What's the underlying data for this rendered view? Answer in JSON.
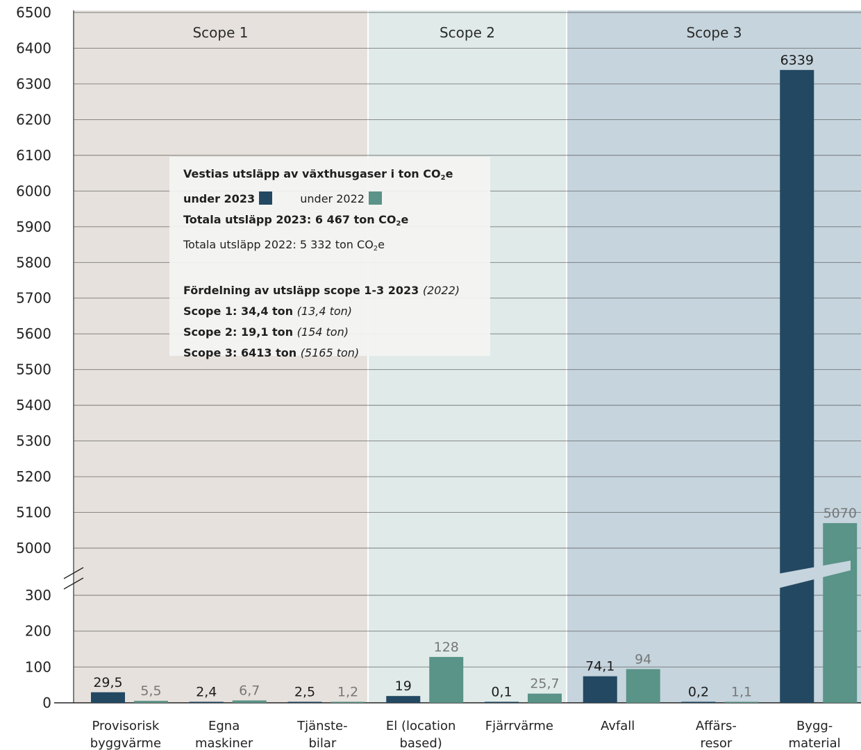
{
  "chart_data": {
    "type": "bar",
    "categories": [
      "Provisorisk byggvärme",
      "Egna maskiner",
      "Tjänste-bilar",
      "El (location based)",
      "Fjärrvärme",
      "Avfall",
      "Affärs-resor",
      "Bygg-material"
    ],
    "category_lines": [
      [
        "Provisorisk",
        "byggvärme"
      ],
      [
        "Egna",
        "maskiner"
      ],
      [
        "Tjänste-",
        "bilar"
      ],
      [
        "El (location",
        "based)"
      ],
      [
        "Fjärrvärme"
      ],
      [
        "Avfall"
      ],
      [
        "Affärs-",
        "resor"
      ],
      [
        "Bygg-",
        "material"
      ]
    ],
    "series": [
      {
        "name": "under 2023",
        "color": "#234862",
        "values": [
          29.5,
          2.4,
          2.5,
          19,
          0.1,
          74.1,
          0.2,
          6339
        ],
        "labels": [
          "29,5",
          "2,4",
          "2,5",
          "19",
          "0,1",
          "74,1",
          "0,2",
          "6339"
        ]
      },
      {
        "name": "under 2022",
        "color": "#5a9387",
        "values": [
          5.5,
          6.7,
          1.2,
          128,
          25.7,
          94,
          1.1,
          5070
        ],
        "labels": [
          "5,5",
          "6,7",
          "1,2",
          "128",
          "25,7",
          "94",
          "1,1",
          "5070"
        ]
      }
    ],
    "y_axis": {
      "broken": true,
      "lower_ticks": [
        0,
        100,
        200,
        300
      ],
      "upper_ticks": [
        5000,
        5100,
        5200,
        5300,
        5400,
        5500,
        5600,
        5700,
        5800,
        5900,
        6000,
        6100,
        6200,
        6300,
        6400,
        6500
      ]
    },
    "scopes": [
      {
        "label": "Scope 1",
        "color": "#e6e1dc",
        "categories": [
          0,
          1,
          2
        ]
      },
      {
        "label": "Scope 2",
        "color": "#e0ebe9",
        "categories": [
          3,
          4
        ]
      },
      {
        "label": "Scope 3",
        "color": "#c5d4dd",
        "categories": [
          5,
          6,
          7
        ]
      }
    ],
    "grid": true
  },
  "info_box": {
    "title": "Vestias utsläpp av växthusgaser i ton CO",
    "title_sub": "2",
    "title_tail": "e",
    "legend_2023": "under 2023",
    "legend_2022": "under 2022",
    "total_2023": "Totala utsläpp 2023: 6 467  ton CO",
    "total_2023_sub": "2",
    "total_2023_tail": "e",
    "total_2022": "Totala utsläpp 2022: 5 332  ton CO",
    "total_2022_sub": "2",
    "total_2022_tail": "e",
    "dist_title": "Fördelning av utsläpp scope 1-3 2023",
    "dist_title_paren": "(2022)",
    "scope1": "Scope 1: 34,4 ton",
    "scope1_paren": "(13,4 ton)",
    "scope2": "Scope 2: 19,1 ton",
    "scope2_paren": "(154 ton)",
    "scope3": "Scope 3: 6413 ton",
    "scope3_paren": "(5165 ton)"
  }
}
